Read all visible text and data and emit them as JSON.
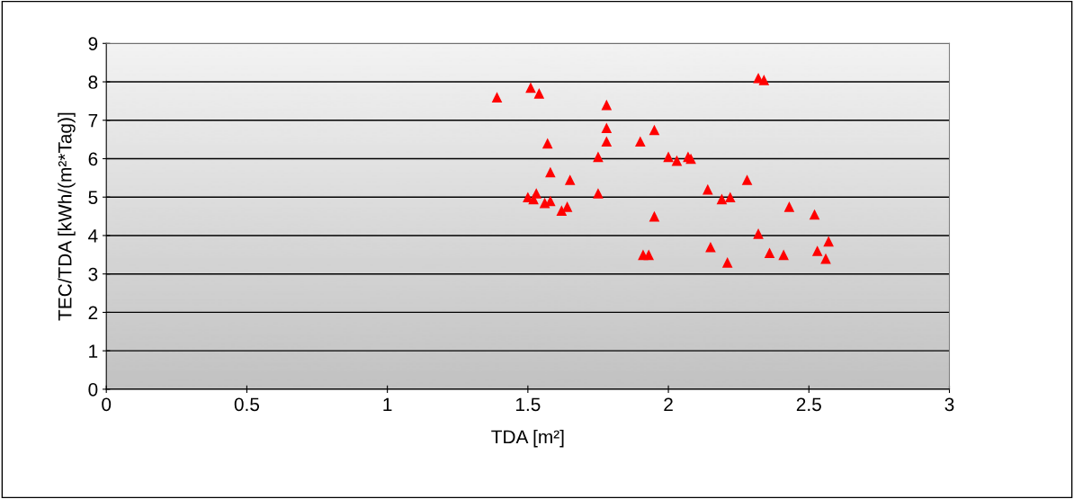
{
  "chart_data": {
    "type": "scatter",
    "xlabel": "TDA [m²]",
    "ylabel": "TEC/TDA [kWh/(m²*Tag)]",
    "x": [
      1.39,
      1.51,
      1.54,
      1.78,
      1.78,
      1.78,
      1.57,
      1.75,
      1.58,
      1.65,
      1.5,
      1.52,
      1.53,
      1.56,
      1.58,
      1.62,
      1.64,
      1.75,
      1.9,
      1.95,
      1.95,
      1.91,
      1.93,
      2.0,
      2.03,
      2.07,
      2.08,
      2.14,
      2.15,
      2.19,
      2.21,
      2.22,
      2.28,
      2.32,
      2.34,
      2.32,
      2.36,
      2.41,
      2.43,
      2.52,
      2.53,
      2.56,
      2.57
    ],
    "series": [
      {
        "color": "#ff0000",
        "values": [
          7.6,
          7.85,
          7.7,
          7.4,
          6.8,
          6.45,
          6.4,
          6.05,
          5.65,
          5.45,
          5.0,
          4.95,
          5.1,
          4.85,
          4.9,
          4.65,
          4.75,
          5.1,
          6.45,
          6.75,
          4.5,
          3.5,
          3.5,
          6.05,
          5.95,
          6.05,
          6.0,
          5.2,
          3.7,
          4.95,
          3.3,
          5.0,
          5.45,
          8.1,
          8.05,
          4.05,
          3.55,
          3.5,
          4.75,
          4.55,
          3.6,
          3.4,
          3.85
        ]
      }
    ],
    "xlim": [
      0,
      3
    ],
    "xticks": [
      0,
      0.5,
      1,
      1.5,
      2,
      2.5,
      3
    ],
    "ylim": [
      0,
      9
    ],
    "yticks": [
      0,
      1,
      2,
      3,
      4,
      5,
      6,
      7,
      8,
      9
    ],
    "grid": "y",
    "marker": "triangle",
    "legend": false
  }
}
